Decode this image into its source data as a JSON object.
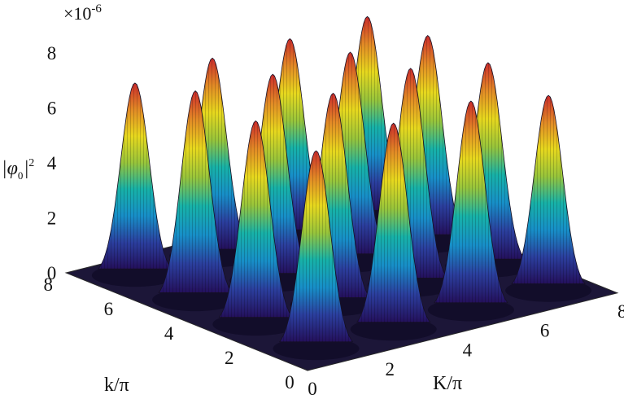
{
  "chart_data": {
    "type": "surface",
    "zlabel": "|φ₀|²",
    "zlabel_parts": {
      "base": "|φ",
      "sub": "0",
      "sup": "2"
    },
    "zscale": {
      "base": "×10",
      "exponent": "-6"
    },
    "zlim": [
      0,
      8
    ],
    "z_ticks": [
      "0",
      "2",
      "4",
      "6",
      "8"
    ],
    "xlabel": "K/π",
    "xlim": [
      0,
      8
    ],
    "x_ticks": [
      "0",
      "2",
      "4",
      "6",
      "8"
    ],
    "ylabel": "k/π",
    "ylim": [
      0,
      8
    ],
    "y_ticks": [
      "0",
      "2",
      "4",
      "6",
      "8"
    ],
    "colormap": "parula",
    "colors": [
      "#24105c",
      "#2b3f9e",
      "#178fc8",
      "#17b2a8",
      "#98c53b",
      "#e7d81e",
      "#e28a26",
      "#cc2b2b"
    ],
    "series": [
      {
        "K": 1,
        "k": 1,
        "peak": 7.2
      },
      {
        "K": 1,
        "k": 3,
        "peak": 7.4
      },
      {
        "K": 1,
        "k": 5,
        "peak": 7.6
      },
      {
        "K": 1,
        "k": 7,
        "peak": 7.0
      },
      {
        "K": 3,
        "k": 1,
        "peak": 7.5
      },
      {
        "K": 3,
        "k": 3,
        "peak": 7.7
      },
      {
        "K": 3,
        "k": 5,
        "peak": 7.5
      },
      {
        "K": 3,
        "k": 7,
        "peak": 7.2
      },
      {
        "K": 5,
        "k": 1,
        "peak": 7.6
      },
      {
        "K": 5,
        "k": 3,
        "peak": 7.9
      },
      {
        "K": 5,
        "k": 5,
        "peak": 7.6
      },
      {
        "K": 5,
        "k": 7,
        "peak": 7.2
      },
      {
        "K": 7,
        "k": 1,
        "peak": 7.1
      },
      {
        "K": 7,
        "k": 3,
        "peak": 7.4
      },
      {
        "K": 7,
        "k": 5,
        "peak": 7.5
      },
      {
        "K": 7,
        "k": 7,
        "peak": 7.3
      }
    ]
  }
}
